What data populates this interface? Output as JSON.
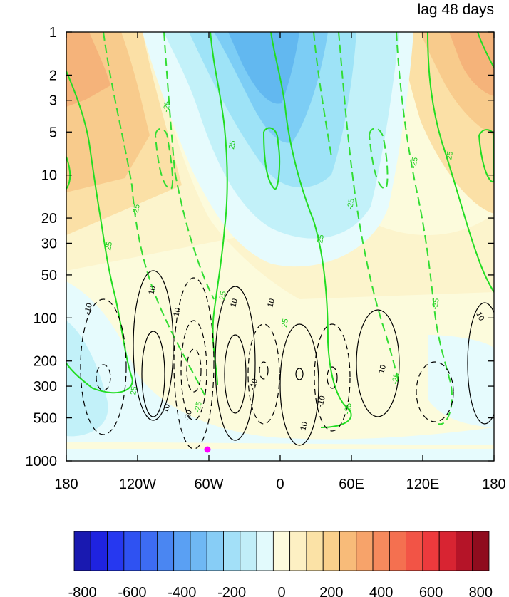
{
  "chart_data": {
    "type": "heatmap",
    "title": "lag 48 days",
    "x_ticks": [
      "180",
      "120W",
      "60W",
      "0",
      "60E",
      "120E",
      "180"
    ],
    "y_ticks": [
      "1",
      "2",
      "3",
      "5",
      "10",
      "20",
      "30",
      "50",
      "100",
      "200",
      "300",
      "500",
      "1000"
    ],
    "y_scale": "log",
    "y_reversed": true,
    "colorbar": {
      "ticks": [
        "-800",
        "-600",
        "-400",
        "-200",
        "0",
        "200",
        "400",
        "600",
        "800"
      ],
      "range": [
        -800,
        800
      ],
      "interval": 50
    },
    "marker": {
      "x": "60W",
      "y": "850",
      "color": "#ff00ff"
    },
    "contour_sets": [
      {
        "name": "green",
        "color": "#22cc22",
        "labels": [
          "25",
          "-25"
        ]
      },
      {
        "name": "black",
        "color": "#000000",
        "labels": [
          "10",
          "-10",
          "20",
          "-20"
        ]
      }
    ]
  }
}
